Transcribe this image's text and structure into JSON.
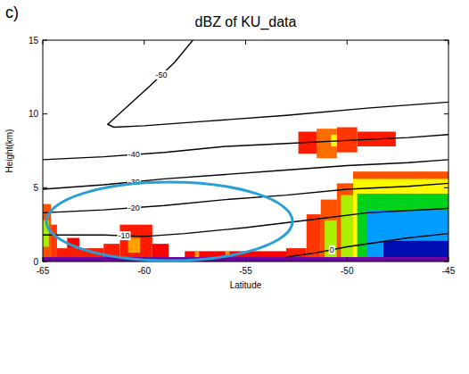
{
  "chart_data": {
    "type": "heatmap",
    "panel": "c)",
    "title": "dBZ of KU_data",
    "x_label": "Latitude",
    "y_label": "Height(km)",
    "xlim": [
      -65,
      -45
    ],
    "xticks": [
      -65,
      -60,
      -55,
      -50,
      -45
    ],
    "ylim": [
      0,
      15
    ],
    "yticks": [
      0,
      5,
      10,
      15
    ],
    "zlim": [
      12,
      48
    ],
    "cells": [
      {
        "lat0": -65,
        "lat1": -64.6,
        "bottom": 0.3,
        "top": 3.9,
        "dbz": 15
      },
      {
        "lat0": -65,
        "lat1": -64.7,
        "bottom": 1.0,
        "top": 2.8,
        "dbz": 24
      },
      {
        "lat0": -64.6,
        "lat1": -64.3,
        "bottom": 0.3,
        "top": 2.5,
        "dbz": 14
      },
      {
        "lat0": -64.3,
        "lat1": -62,
        "bottom": 0.3,
        "top": 0.9,
        "dbz": 13
      },
      {
        "lat0": -63.8,
        "lat1": -63.2,
        "bottom": 0.9,
        "top": 1.6,
        "dbz": 12
      },
      {
        "lat0": -62,
        "lat1": -61.2,
        "bottom": 0.3,
        "top": 1.2,
        "dbz": 13
      },
      {
        "lat0": -61.2,
        "lat1": -59.6,
        "bottom": 0.3,
        "top": 2.5,
        "dbz": 13
      },
      {
        "lat0": -60.8,
        "lat1": -60.2,
        "bottom": 0.6,
        "top": 1.6,
        "dbz": 18
      },
      {
        "lat0": -59.6,
        "lat1": -58.8,
        "bottom": 0.3,
        "top": 1.2,
        "dbz": 12
      },
      {
        "lat0": -58,
        "lat1": -53,
        "bottom": 0.3,
        "top": 0.7,
        "dbz": 12
      },
      {
        "lat0": -57.5,
        "lat1": -57.3,
        "bottom": 0.3,
        "top": 0.7,
        "dbz": 18
      },
      {
        "lat0": -56,
        "lat1": -55.8,
        "bottom": 0.3,
        "top": 0.7,
        "dbz": 18
      },
      {
        "lat0": -52.4,
        "lat1": -51.5,
        "bottom": 7.3,
        "top": 8.8,
        "dbz": 13
      },
      {
        "lat0": -51.5,
        "lat1": -50.5,
        "bottom": 7.0,
        "top": 9.0,
        "dbz": 16
      },
      {
        "lat0": -50.8,
        "lat1": -50.2,
        "bottom": 7.8,
        "top": 8.6,
        "dbz": 22
      },
      {
        "lat0": -50.5,
        "lat1": -49.5,
        "bottom": 7.4,
        "top": 9.1,
        "dbz": 14
      },
      {
        "lat0": -49.5,
        "lat1": -47.6,
        "bottom": 7.8,
        "top": 8.8,
        "dbz": 13
      },
      {
        "lat0": -53,
        "lat1": -52,
        "bottom": 0.3,
        "top": 0.9,
        "dbz": 13
      },
      {
        "lat0": -52,
        "lat1": -51.3,
        "bottom": 0.3,
        "top": 3.2,
        "dbz": 14
      },
      {
        "lat0": -51.3,
        "lat1": -50.5,
        "bottom": 0.3,
        "top": 4.2,
        "dbz": 15
      },
      {
        "lat0": -51.1,
        "lat1": -50.5,
        "bottom": 0.3,
        "top": 2.8,
        "dbz": 24
      },
      {
        "lat0": -50.5,
        "lat1": -49.7,
        "bottom": 0.3,
        "top": 5.3,
        "dbz": 15
      },
      {
        "lat0": -50.3,
        "lat1": -49.7,
        "bottom": 0.3,
        "top": 4.5,
        "dbz": 24
      },
      {
        "lat0": -49.7,
        "lat1": -45,
        "bottom": 0.3,
        "top": 6.1,
        "dbz": 15
      },
      {
        "lat0": -49.7,
        "lat1": -45,
        "bottom": 0.3,
        "top": 5.6,
        "dbz": 22
      },
      {
        "lat0": -49.5,
        "lat1": -45,
        "bottom": 0.3,
        "top": 4.6,
        "dbz": 28
      },
      {
        "lat0": -49,
        "lat1": -45,
        "bottom": 0.3,
        "top": 3.5,
        "dbz": 35
      },
      {
        "lat0": -48.2,
        "lat1": -45,
        "bottom": 0.3,
        "top": 1.4,
        "dbz": 42
      },
      {
        "lat0": -65,
        "lat1": -45,
        "bottom": 0,
        "top": 0.3,
        "dbz": 48
      }
    ],
    "contours": [
      {
        "label": "-50",
        "x": [
          -57.6,
          -58.5,
          -59.8,
          -61,
          -61.8,
          -61.5,
          -60,
          -57,
          -53,
          -49,
          -45
        ],
        "y": [
          15,
          13.5,
          11.8,
          10.3,
          9.3,
          9.1,
          9.2,
          9.5,
          9.9,
          10.4,
          10.8
        ]
      },
      {
        "label": "-40",
        "x": [
          -65,
          -62,
          -59,
          -56,
          -53,
          -50,
          -47,
          -45
        ],
        "y": [
          6.9,
          7.1,
          7.4,
          7.8,
          8.0,
          8.2,
          8.4,
          8.6
        ]
      },
      {
        "label": "-30",
        "x": [
          -65,
          -62,
          -59,
          -56,
          -53,
          -50,
          -47,
          -45
        ],
        "y": [
          4.9,
          5.2,
          5.6,
          5.9,
          6.2,
          6.5,
          6.7,
          6.9
        ]
      },
      {
        "label": "-20",
        "x": [
          -65,
          -62,
          -59,
          -56,
          -53,
          -50,
          -47,
          -45
        ],
        "y": [
          3.3,
          3.5,
          3.8,
          4.2,
          4.5,
          4.9,
          5.1,
          5.3
        ]
      },
      {
        "label": "-10",
        "x": [
          -65,
          -62,
          -60,
          -58,
          -55,
          -52,
          -49,
          -45
        ],
        "y": [
          1.8,
          1.8,
          1.7,
          1.9,
          2.3,
          2.8,
          3.3,
          3.6
        ]
      },
      {
        "label": "0",
        "x": [
          -53,
          -51.5,
          -50,
          -47,
          -45
        ],
        "y": [
          0.3,
          0.6,
          1.0,
          1.6,
          1.9
        ]
      }
    ]
  }
}
